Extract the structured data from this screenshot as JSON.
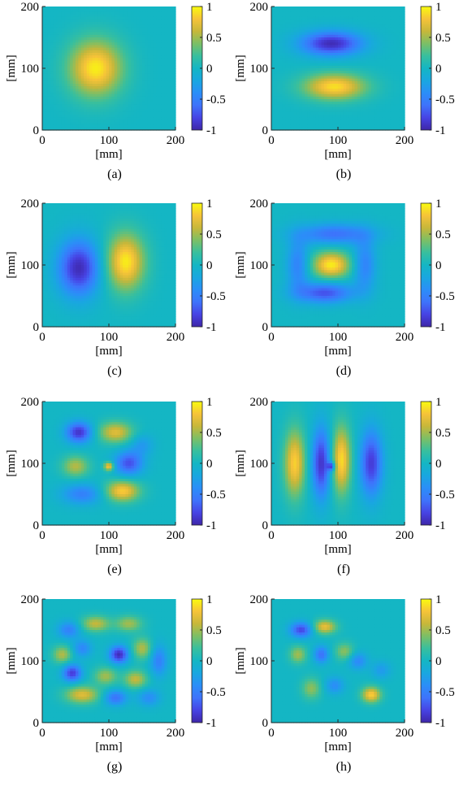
{
  "colormap": [
    "#3e26a8",
    "#4743e4",
    "#3e73fb",
    "#2b8ef8",
    "#19a7e0",
    "#14b6c4",
    "#38bf9e",
    "#7cbf66",
    "#c7b73a",
    "#f6c339",
    "#f9fb0e"
  ],
  "background_color": "#1fb4c9",
  "chart_data": [
    {
      "type": "heatmap",
      "panel": "(a)",
      "xlabel": "[mm]",
      "ylabel": "[mm]",
      "xlim": [
        0,
        200
      ],
      "ylim": [
        0,
        200
      ],
      "xticks": [
        "0",
        "100",
        "200"
      ],
      "yticks": [
        "0",
        "100",
        "200"
      ],
      "colorbar": {
        "range": [
          -1,
          1
        ],
        "ticks": [
          "1",
          "0.5",
          "0",
          "-0.5",
          "-1"
        ]
      },
      "peaks": [
        {
          "x": 80,
          "y": 100,
          "sx": 28,
          "sy": 32,
          "v": 0.95
        }
      ]
    },
    {
      "type": "heatmap",
      "panel": "(b)",
      "xlabel": "[mm]",
      "ylabel": "[mm]",
      "xlim": [
        0,
        200
      ],
      "ylim": [
        0,
        200
      ],
      "xticks": [
        "0",
        "100",
        "200"
      ],
      "yticks": [
        "0",
        "100",
        "200"
      ],
      "colorbar": {
        "range": [
          -1,
          1
        ],
        "ticks": [
          "1",
          "0.5",
          "0",
          "-0.5",
          "-1"
        ]
      },
      "peaks": [
        {
          "x": 90,
          "y": 140,
          "sx": 33,
          "sy": 14,
          "v": -0.95
        },
        {
          "x": 95,
          "y": 70,
          "sx": 33,
          "sy": 15,
          "v": 0.9
        }
      ]
    },
    {
      "type": "heatmap",
      "panel": "(c)",
      "xlabel": "[mm]",
      "ylabel": "[mm]",
      "xlim": [
        0,
        200
      ],
      "ylim": [
        0,
        200
      ],
      "xticks": [
        "0",
        "100",
        "200"
      ],
      "yticks": [
        "0",
        "100",
        "200"
      ],
      "colorbar": {
        "range": [
          -1,
          1
        ],
        "ticks": [
          "1",
          "0.5",
          "0",
          "-0.5",
          "-1"
        ]
      },
      "peaks": [
        {
          "x": 55,
          "y": 95,
          "sx": 22,
          "sy": 32,
          "v": -0.95
        },
        {
          "x": 125,
          "y": 105,
          "sx": 20,
          "sy": 32,
          "v": 0.95
        }
      ]
    },
    {
      "type": "heatmap",
      "panel": "(d)",
      "xlabel": "[mm]",
      "ylabel": "[mm]",
      "xlim": [
        0,
        200
      ],
      "ylim": [
        0,
        200
      ],
      "xticks": [
        "0",
        "100",
        "200"
      ],
      "yticks": [
        "0",
        "100",
        "200"
      ],
      "colorbar": {
        "range": [
          -1,
          1
        ],
        "ticks": [
          "1",
          "0.5",
          "0",
          "-0.5",
          "-1"
        ]
      },
      "peaks": [
        {
          "x": 90,
          "y": 100,
          "sx": 20,
          "sy": 15,
          "v": 0.95
        },
        {
          "x": 95,
          "y": 150,
          "sx": 40,
          "sy": 12,
          "v": -0.6
        },
        {
          "x": 80,
          "y": 55,
          "sx": 30,
          "sy": 12,
          "v": -0.75
        },
        {
          "x": 40,
          "y": 100,
          "sx": 12,
          "sy": 30,
          "v": -0.5
        },
        {
          "x": 140,
          "y": 100,
          "sx": 12,
          "sy": 30,
          "v": -0.5
        }
      ]
    },
    {
      "type": "heatmap",
      "panel": "(e)",
      "xlabel": "[mm]",
      "ylabel": "[mm]",
      "xlim": [
        0,
        200
      ],
      "ylim": [
        0,
        200
      ],
      "xticks": [
        "0",
        "100",
        "200"
      ],
      "yticks": [
        "0",
        "100",
        "200"
      ],
      "colorbar": {
        "range": [
          -1,
          1
        ],
        "ticks": [
          "1",
          "0.5",
          "0",
          "-0.5",
          "-1"
        ]
      },
      "peaks": [
        {
          "x": 55,
          "y": 150,
          "sx": 14,
          "sy": 12,
          "v": -0.9
        },
        {
          "x": 110,
          "y": 150,
          "sx": 18,
          "sy": 12,
          "v": 0.7
        },
        {
          "x": 50,
          "y": 95,
          "sx": 14,
          "sy": 12,
          "v": 0.55
        },
        {
          "x": 130,
          "y": 100,
          "sx": 15,
          "sy": 14,
          "v": -0.75
        },
        {
          "x": 120,
          "y": 55,
          "sx": 18,
          "sy": 12,
          "v": 0.85
        },
        {
          "x": 60,
          "y": 50,
          "sx": 22,
          "sy": 12,
          "v": -0.5
        },
        {
          "x": 100,
          "y": 95,
          "sx": 5,
          "sy": 5,
          "v": 0.9
        },
        {
          "x": 150,
          "y": 130,
          "sx": 12,
          "sy": 12,
          "v": -0.3
        }
      ]
    },
    {
      "type": "heatmap",
      "panel": "(f)",
      "xlabel": "[mm]",
      "ylabel": "[mm]",
      "xlim": [
        0,
        200
      ],
      "ylim": [
        0,
        200
      ],
      "xticks": [
        "0",
        "100",
        "200"
      ],
      "yticks": [
        "0",
        "100",
        "200"
      ],
      "colorbar": {
        "range": [
          -1,
          1
        ],
        "ticks": [
          "1",
          "0.5",
          "0",
          "-0.5",
          "-1"
        ]
      },
      "peaks": [
        {
          "x": 35,
          "y": 100,
          "sx": 11,
          "sy": 38,
          "v": 0.85
        },
        {
          "x": 75,
          "y": 100,
          "sx": 10,
          "sy": 40,
          "v": -0.9
        },
        {
          "x": 105,
          "y": 105,
          "sx": 10,
          "sy": 38,
          "v": 0.9
        },
        {
          "x": 150,
          "y": 100,
          "sx": 12,
          "sy": 38,
          "v": -0.85
        },
        {
          "x": 90,
          "y": 95,
          "sx": 4,
          "sy": 5,
          "v": -0.8
        }
      ]
    },
    {
      "type": "heatmap",
      "panel": "(g)",
      "xlabel": "[mm]",
      "ylabel": "[mm]",
      "xlim": [
        0,
        200
      ],
      "ylim": [
        0,
        200
      ],
      "xticks": [
        "0",
        "100",
        "200"
      ],
      "yticks": [
        "0",
        "100",
        "200"
      ],
      "colorbar": {
        "range": [
          -1,
          1
        ],
        "ticks": [
          "1",
          "0.5",
          "0",
          "-0.5",
          "-1"
        ]
      },
      "peaks": [
        {
          "x": 40,
          "y": 150,
          "sx": 12,
          "sy": 10,
          "v": -0.5
        },
        {
          "x": 80,
          "y": 160,
          "sx": 15,
          "sy": 9,
          "v": 0.6
        },
        {
          "x": 130,
          "y": 160,
          "sx": 14,
          "sy": 9,
          "v": 0.5
        },
        {
          "x": 30,
          "y": 110,
          "sx": 10,
          "sy": 10,
          "v": 0.55
        },
        {
          "x": 60,
          "y": 120,
          "sx": 10,
          "sy": 10,
          "v": -0.45
        },
        {
          "x": 115,
          "y": 110,
          "sx": 10,
          "sy": 10,
          "v": -0.95
        },
        {
          "x": 150,
          "y": 120,
          "sx": 10,
          "sy": 12,
          "v": 0.55
        },
        {
          "x": 175,
          "y": 100,
          "sx": 9,
          "sy": 18,
          "v": -0.5
        },
        {
          "x": 45,
          "y": 80,
          "sx": 10,
          "sy": 10,
          "v": -0.85
        },
        {
          "x": 95,
          "y": 75,
          "sx": 12,
          "sy": 10,
          "v": 0.5
        },
        {
          "x": 140,
          "y": 70,
          "sx": 12,
          "sy": 10,
          "v": 0.6
        },
        {
          "x": 60,
          "y": 45,
          "sx": 18,
          "sy": 10,
          "v": 0.7
        },
        {
          "x": 110,
          "y": 40,
          "sx": 12,
          "sy": 9,
          "v": -0.6
        },
        {
          "x": 160,
          "y": 40,
          "sx": 12,
          "sy": 10,
          "v": -0.4
        }
      ]
    },
    {
      "type": "heatmap",
      "panel": "(h)",
      "xlabel": "[mm]",
      "ylabel": "[mm]",
      "xlim": [
        0,
        200
      ],
      "ylim": [
        0,
        200
      ],
      "xticks": [
        "0",
        "100",
        "200"
      ],
      "yticks": [
        "0",
        "100",
        "200"
      ],
      "colorbar": {
        "range": [
          -1,
          1
        ],
        "ticks": [
          "1",
          "0.5",
          "0",
          "-0.5",
          "-1"
        ]
      },
      "peaks": [
        {
          "x": 45,
          "y": 150,
          "sx": 12,
          "sy": 9,
          "v": -0.8
        },
        {
          "x": 80,
          "y": 155,
          "sx": 12,
          "sy": 8,
          "v": 0.75
        },
        {
          "x": 40,
          "y": 110,
          "sx": 9,
          "sy": 10,
          "v": 0.5
        },
        {
          "x": 75,
          "y": 110,
          "sx": 8,
          "sy": 10,
          "v": -0.6
        },
        {
          "x": 110,
          "y": 115,
          "sx": 10,
          "sy": 10,
          "v": 0.45
        },
        {
          "x": 130,
          "y": 100,
          "sx": 10,
          "sy": 10,
          "v": -0.45
        },
        {
          "x": 60,
          "y": 55,
          "sx": 10,
          "sy": 12,
          "v": 0.45
        },
        {
          "x": 95,
          "y": 60,
          "sx": 10,
          "sy": 10,
          "v": -0.4
        },
        {
          "x": 150,
          "y": 45,
          "sx": 10,
          "sy": 9,
          "v": 0.85
        },
        {
          "x": 165,
          "y": 85,
          "sx": 10,
          "sy": 10,
          "v": -0.3
        }
      ]
    }
  ]
}
